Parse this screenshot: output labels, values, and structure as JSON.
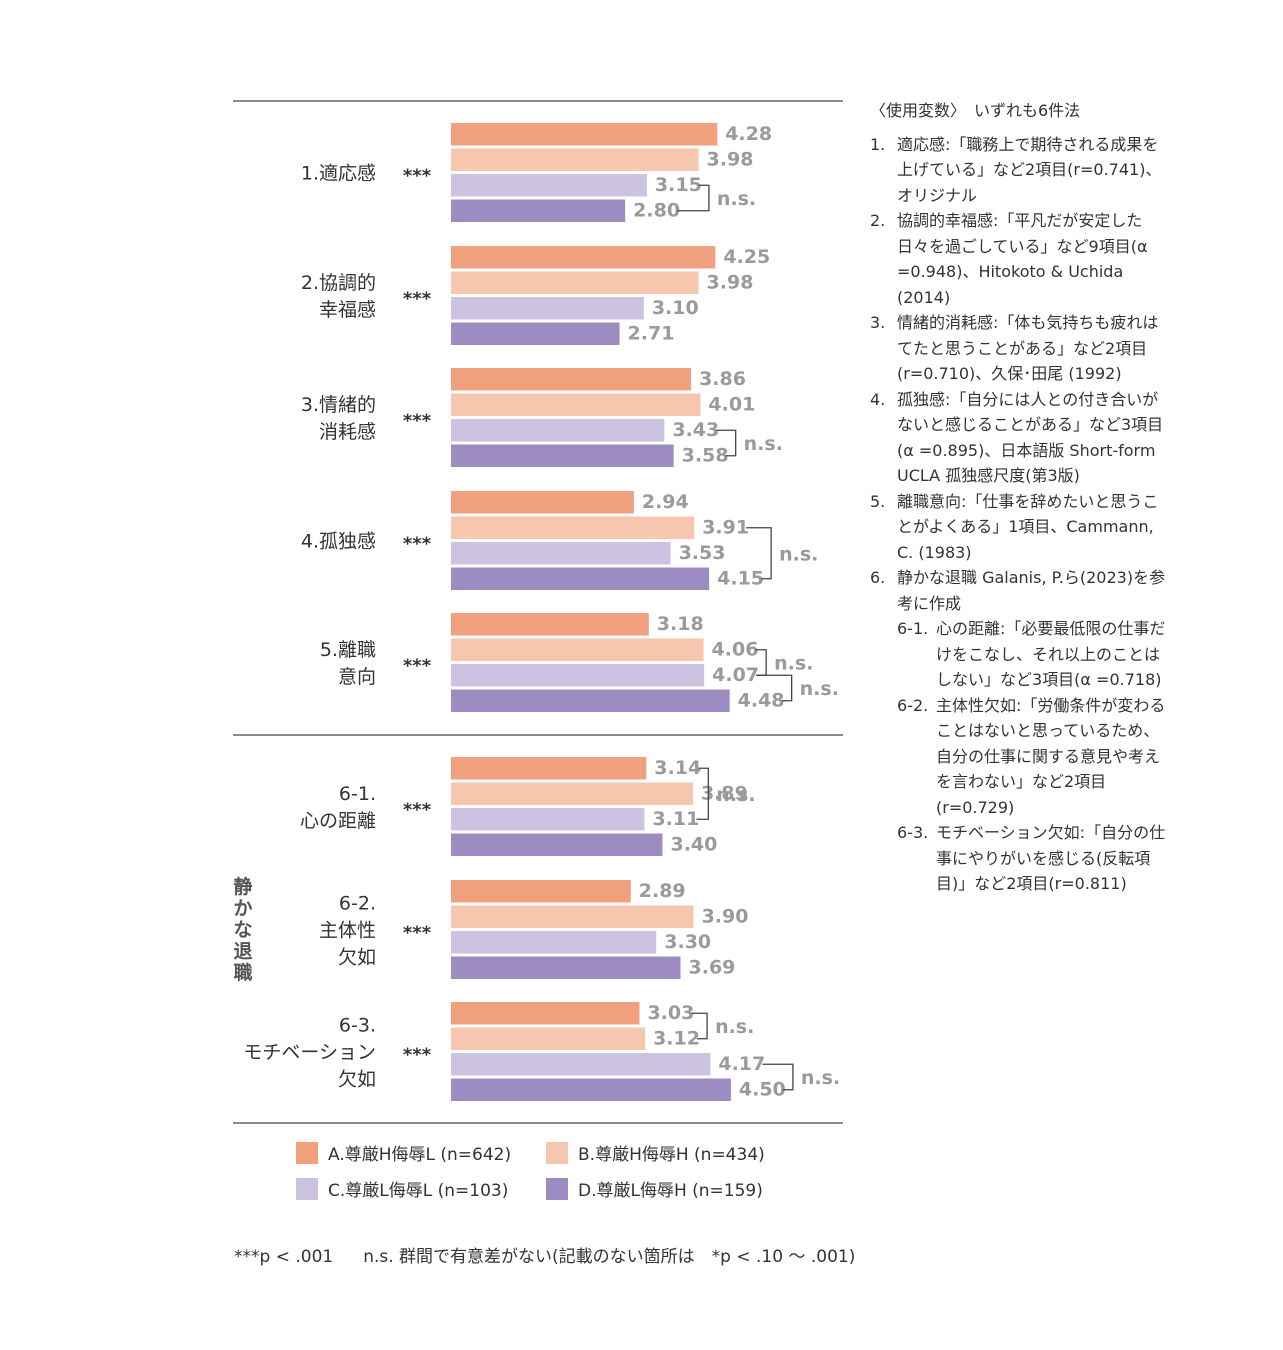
{
  "chart_data": {
    "type": "bar",
    "orientation": "horizontal",
    "xlim": [
      0,
      5
    ],
    "significance_marker": "***",
    "ns_label": "n.s.",
    "side_label": "静かな退職",
    "series": [
      {
        "name": "A.尊厳H侮辱L (n=642)",
        "color": "#f0a07c"
      },
      {
        "name": "B.尊厳H侮辱H (n=434)",
        "color": "#f6c7ae"
      },
      {
        "name": "C.尊厳L侮辱L (n=103)",
        "color": "#ccc3e0"
      },
      {
        "name": "D.尊厳L侮辱H (n=159)",
        "color": "#9c8cc2"
      }
    ],
    "groups": [
      {
        "label_lines": [
          "1.適応感"
        ],
        "values": [
          4.28,
          3.98,
          3.15,
          2.8
        ],
        "labels": [
          "4.28",
          "3.98",
          "3.15",
          "2.80"
        ],
        "ns": [
          [
            2,
            3
          ]
        ]
      },
      {
        "label_lines": [
          "2.協調的",
          "幸福感"
        ],
        "values": [
          4.25,
          3.98,
          3.1,
          2.71
        ],
        "labels": [
          "4.25",
          "3.98",
          "3.10",
          "2.71"
        ],
        "ns": []
      },
      {
        "label_lines": [
          "3.情緒的",
          "消耗感"
        ],
        "values": [
          3.86,
          4.01,
          3.43,
          3.58
        ],
        "labels": [
          "3.86",
          "4.01",
          "3.43",
          "3.58"
        ],
        "ns": [
          [
            2,
            3
          ]
        ]
      },
      {
        "label_lines": [
          "4.孤独感"
        ],
        "values": [
          2.94,
          3.91,
          3.53,
          4.15
        ],
        "labels": [
          "2.94",
          "3.91",
          "3.53",
          "4.15"
        ],
        "ns": [
          [
            1,
            3
          ]
        ]
      },
      {
        "label_lines": [
          "5.離職",
          "意向"
        ],
        "values": [
          3.18,
          4.06,
          4.07,
          4.48
        ],
        "labels": [
          "3.18",
          "4.06",
          "4.07",
          "4.48"
        ],
        "ns": [
          [
            1,
            2
          ],
          [
            2,
            3
          ]
        ]
      },
      {
        "label_lines": [
          "6-1.",
          "心の距離"
        ],
        "values": [
          3.14,
          3.89,
          3.11,
          3.4
        ],
        "labels": [
          "3.14",
          "3.89",
          "3.11",
          "3.40"
        ],
        "ns": [
          [
            0,
            2
          ]
        ]
      },
      {
        "label_lines": [
          "6-2.",
          "主体性",
          "欠如"
        ],
        "values": [
          2.89,
          3.9,
          3.3,
          3.69
        ],
        "labels": [
          "2.89",
          "3.90",
          "3.30",
          "3.69"
        ],
        "ns": []
      },
      {
        "label_lines": [
          "6-3.",
          "モチベーション",
          "欠如"
        ],
        "values": [
          3.03,
          3.12,
          4.17,
          4.5
        ],
        "labels": [
          "3.03",
          "3.12",
          "4.17",
          "4.50"
        ],
        "ns": [
          [
            0,
            1
          ],
          [
            2,
            3
          ]
        ]
      }
    ]
  },
  "notes": {
    "heading": "〈使用変数〉　いずれも6件法",
    "items": [
      {
        "num": "1.",
        "text": "適応感:「職務上で期待される成果を上げている」など2項目(r=0.741)、オリジナル"
      },
      {
        "num": "2.",
        "text": "協調的幸福感:「平凡だが安定した日々を過ごしている」など9項目(α =0.948)、Hitokoto & Uchida (2014)"
      },
      {
        "num": "3.",
        "text": "情緒的消耗感:「体も気持ちも疲れはてたと思うことがある」など2項目(r=0.710)、久保･田尾 (1992)"
      },
      {
        "num": "4.",
        "text": "孤独感:「自分には人との付き合いがないと感じることがある」など3項目(α =0.895)、日本語版 Short-form UCLA 孤独感尺度(第3版)"
      },
      {
        "num": "5.",
        "text": "離職意向:「仕事を辞めたいと思うことがよくある」1項目、Cammann, C. (1983)"
      },
      {
        "num": "6.",
        "text": "静かな退職 Galanis, P.ら(2023)を参考に作成"
      }
    ],
    "subitems": [
      {
        "num": "6-1.",
        "text": "心の距離:「必要最低限の仕事だけをこなし、それ以上のことはしない」など3項目(α =0.718)"
      },
      {
        "num": "6-2.",
        "text": "主体性欠如:「労働条件が変わることはないと思っているため、自分の仕事に関する意見や考えを言わない」など2項目(r=0.729)"
      },
      {
        "num": "6-3.",
        "text": "モチベーション欠如:「自分の仕事にやりがいを感じる(反転項目)」など2項目(r=0.811)"
      }
    ]
  },
  "footnote": {
    "sig": "***p < .001",
    "ns": "n.s. 群間で有意差がない(記載のない箇所は　*p < .10 ～ .001)"
  }
}
